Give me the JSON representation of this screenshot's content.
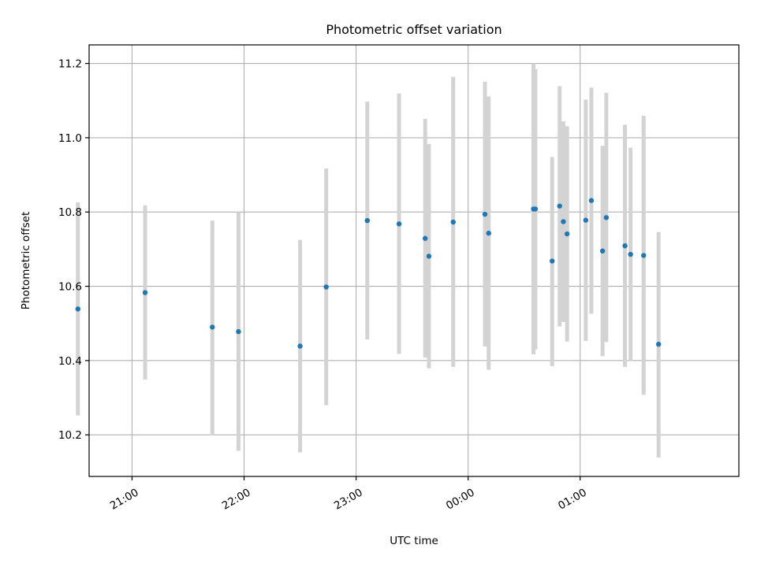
{
  "chart_data": {
    "type": "scatter",
    "title": "Photometric offset variation",
    "xlabel": "UTC time",
    "ylabel": "Photometric offset",
    "xlim": [
      "20:37",
      "26:25"
    ],
    "ylim": [
      10.088,
      11.25
    ],
    "x_ticks": [
      "21:00",
      "22:00",
      "23:00",
      "00:00",
      "01:00"
    ],
    "y_ticks": [
      "10.2",
      "10.4",
      "10.6",
      "10.8",
      "11.0",
      "11.2"
    ],
    "y_tick_values": [
      10.2,
      10.4,
      10.6,
      10.8,
      11.0,
      11.2
    ],
    "grid": true,
    "colors": {
      "points": "#1f77b4",
      "error_bars": "#d3d3d3"
    },
    "series": [
      {
        "points": [
          {
            "x": "20:31",
            "y": 10.539,
            "ylow": 10.252,
            "yhigh": 10.826
          },
          {
            "x": "21:07",
            "y": 10.583,
            "ylow": 10.349,
            "yhigh": 10.818
          },
          {
            "x": "21:43",
            "y": 10.49,
            "ylow": 10.198,
            "yhigh": 10.777
          },
          {
            "x": "21:57",
            "y": 10.478,
            "ylow": 10.157,
            "yhigh": 10.8
          },
          {
            "x": "22:30",
            "y": 10.439,
            "ylow": 10.153,
            "yhigh": 10.725
          },
          {
            "x": "22:44",
            "y": 10.598,
            "ylow": 10.28,
            "yhigh": 10.917
          },
          {
            "x": "23:06",
            "y": 10.777,
            "ylow": 10.457,
            "yhigh": 11.097
          },
          {
            "x": "23:23",
            "y": 10.768,
            "ylow": 10.418,
            "yhigh": 11.119
          },
          {
            "x": "23:37",
            "y": 10.729,
            "ylow": 10.408,
            "yhigh": 11.051
          },
          {
            "x": "23:39",
            "y": 10.681,
            "ylow": 10.379,
            "yhigh": 10.983
          },
          {
            "x": "23:52",
            "y": 10.773,
            "ylow": 10.383,
            "yhigh": 11.164
          },
          {
            "x": "24:09",
            "y": 10.794,
            "ylow": 10.438,
            "yhigh": 11.151
          },
          {
            "x": "24:11",
            "y": 10.743,
            "ylow": 10.375,
            "yhigh": 11.111
          },
          {
            "x": "24:35",
            "y": 10.808,
            "ylow": 10.417,
            "yhigh": 11.2
          },
          {
            "x": "24:36",
            "y": 10.808,
            "ylow": 10.43,
            "yhigh": 11.185
          },
          {
            "x": "24:45",
            "y": 10.668,
            "ylow": 10.385,
            "yhigh": 10.948
          },
          {
            "x": "24:49",
            "y": 10.816,
            "ylow": 10.492,
            "yhigh": 11.139
          },
          {
            "x": "24:51",
            "y": 10.774,
            "ylow": 10.504,
            "yhigh": 11.044
          },
          {
            "x": "24:53",
            "y": 10.741,
            "ylow": 10.451,
            "yhigh": 11.031
          },
          {
            "x": "25:03",
            "y": 10.778,
            "ylow": 10.453,
            "yhigh": 11.103
          },
          {
            "x": "25:06",
            "y": 10.831,
            "ylow": 10.526,
            "yhigh": 11.135
          },
          {
            "x": "25:12",
            "y": 10.695,
            "ylow": 10.412,
            "yhigh": 10.978
          },
          {
            "x": "25:14",
            "y": 10.785,
            "ylow": 10.45,
            "yhigh": 11.121
          },
          {
            "x": "25:24",
            "y": 10.709,
            "ylow": 10.383,
            "yhigh": 11.035
          },
          {
            "x": "25:27",
            "y": 10.686,
            "ylow": 10.398,
            "yhigh": 10.973
          },
          {
            "x": "25:34",
            "y": 10.683,
            "ylow": 10.308,
            "yhigh": 11.059
          },
          {
            "x": "25:42",
            "y": 10.444,
            "ylow": 10.139,
            "yhigh": 10.746
          }
        ]
      }
    ]
  }
}
